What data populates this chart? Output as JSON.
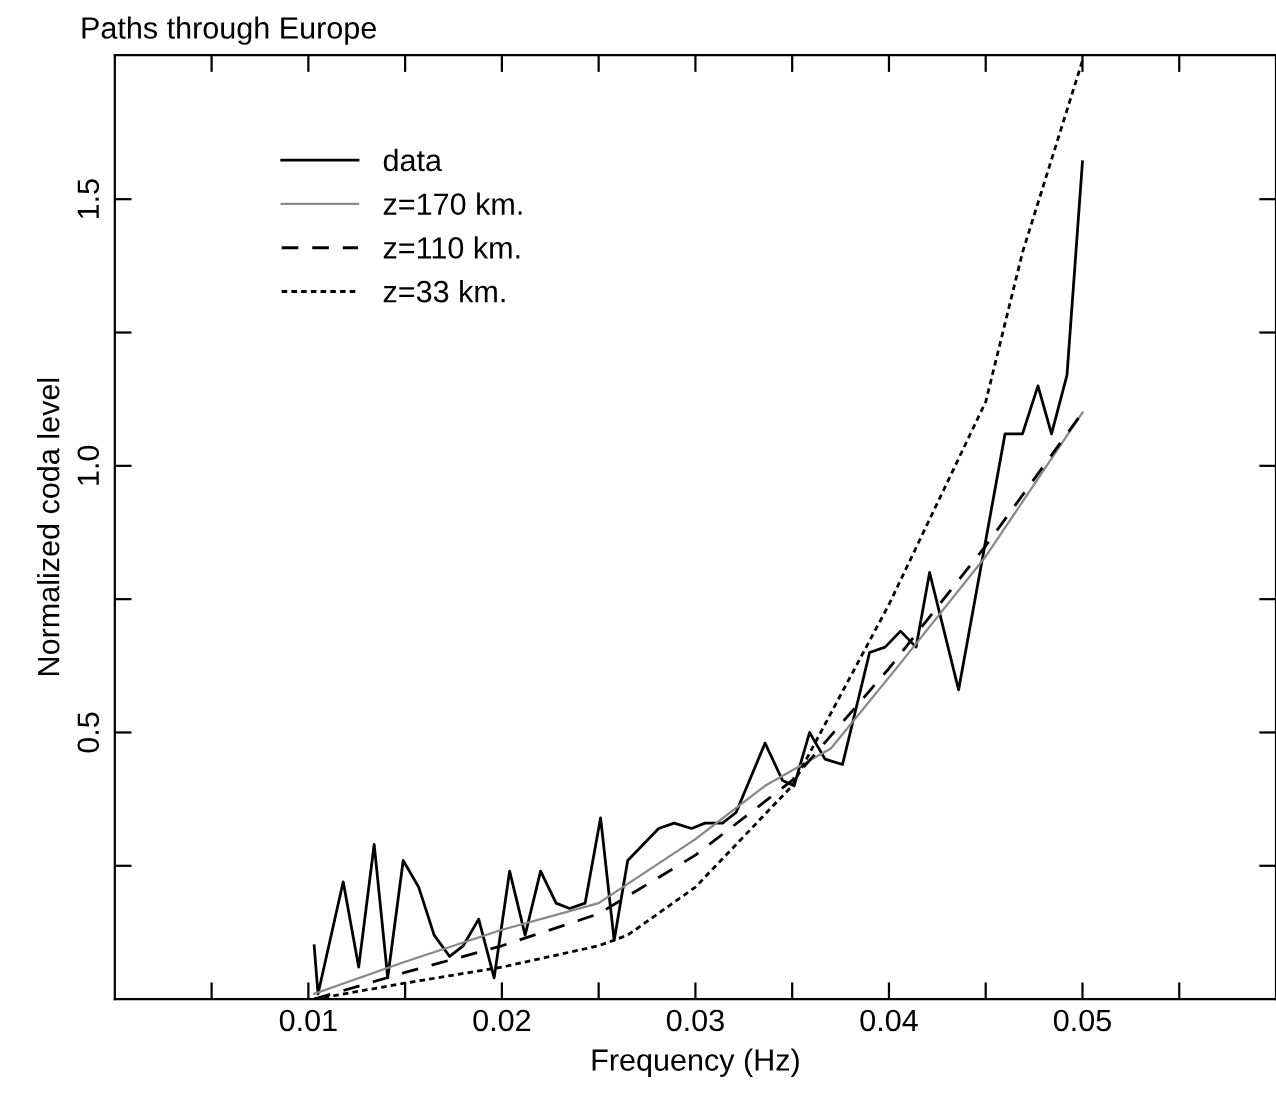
{
  "chart_data": {
    "type": "line",
    "title": "Paths through Europe",
    "xlabel": "Frequency (Hz)",
    "ylabel": "Normalized coda level",
    "xlim": [
      0,
      0.06
    ],
    "ylim": [
      0,
      1.77
    ],
    "xticks": [
      {
        "value": 0.005,
        "label": null
      },
      0.01,
      {
        "value": 0.015,
        "label": null
      },
      0.02,
      {
        "value": 0.025,
        "label": null
      },
      0.03,
      {
        "value": 0.035,
        "label": null
      },
      0.04,
      {
        "value": 0.045,
        "label": null
      },
      0.05,
      {
        "value": 0.055,
        "label": null
      }
    ],
    "yticks": [
      {
        "value": 0.25,
        "label": null
      },
      0.5,
      {
        "value": 0.75,
        "label": null
      },
      {
        "value": 1,
        "label": "1.0"
      },
      {
        "value": 1.25,
        "label": null
      },
      1.5
    ],
    "grid": false,
    "legend": "top left",
    "series": [
      {
        "name": "data",
        "color": "#000000",
        "line_style": "solid",
        "x": [
          0.0103,
          0.0105,
          0.0118,
          0.0126,
          0.0134,
          0.0141,
          0.0149,
          0.0157,
          0.0165,
          0.0173,
          0.018,
          0.0188,
          0.0196,
          0.0204,
          0.0212,
          0.022,
          0.0228,
          0.0235,
          0.0243,
          0.0251,
          0.0258,
          0.0265,
          0.0273,
          0.0281,
          0.0289,
          0.0298,
          0.0305,
          0.0314,
          0.0321,
          0.0336,
          0.0345,
          0.0351,
          0.0359,
          0.0367,
          0.0376,
          0.039,
          0.0398,
          0.0406,
          0.0414,
          0.0421,
          0.0436,
          0.046,
          0.0469,
          0.0477,
          0.0484,
          0.0492,
          0.05
        ],
        "values": [
          0.1,
          0.01,
          0.22,
          0.06,
          0.29,
          0.04,
          0.26,
          0.21,
          0.12,
          0.08,
          0.1,
          0.15,
          0.04,
          0.24,
          0.12,
          0.24,
          0.18,
          0.17,
          0.18,
          0.34,
          0.11,
          0.26,
          0.29,
          0.32,
          0.33,
          0.32,
          0.33,
          0.33,
          0.35,
          0.48,
          0.41,
          0.4,
          0.5,
          0.45,
          0.44,
          0.65,
          0.66,
          0.69,
          0.66,
          0.8,
          0.58,
          1.06,
          1.06,
          1.15,
          1.06,
          1.17,
          1.57
        ]
      },
      {
        "name": "z=170 km.",
        "color": "#888888",
        "line_style": "solid",
        "x": [
          0.0103,
          0.015,
          0.02,
          0.025,
          0.03,
          0.0336,
          0.037,
          0.0406,
          0.045,
          0.05
        ],
        "values": [
          0.01,
          0.07,
          0.13,
          0.18,
          0.3,
          0.4,
          0.47,
          0.63,
          0.83,
          1.1
        ]
      },
      {
        "name": "z=110 km.",
        "color": "#000000",
        "line_style": "dashed",
        "x": [
          0.0103,
          0.015,
          0.02,
          0.025,
          0.03,
          0.035,
          0.04,
          0.045,
          0.05
        ],
        "values": [
          0.0,
          0.05,
          0.1,
          0.16,
          0.27,
          0.41,
          0.62,
          0.85,
          1.1
        ]
      },
      {
        "name": "z=33 km.",
        "color": "#000000",
        "line_style": "dotted",
        "x": [
          0.0103,
          0.015,
          0.02,
          0.025,
          0.0265,
          0.03,
          0.035,
          0.04,
          0.045,
          0.0469,
          0.05
        ],
        "values": [
          0.0,
          0.03,
          0.06,
          0.1,
          0.12,
          0.21,
          0.4,
          0.74,
          1.12,
          1.4,
          1.76
        ]
      }
    ]
  }
}
